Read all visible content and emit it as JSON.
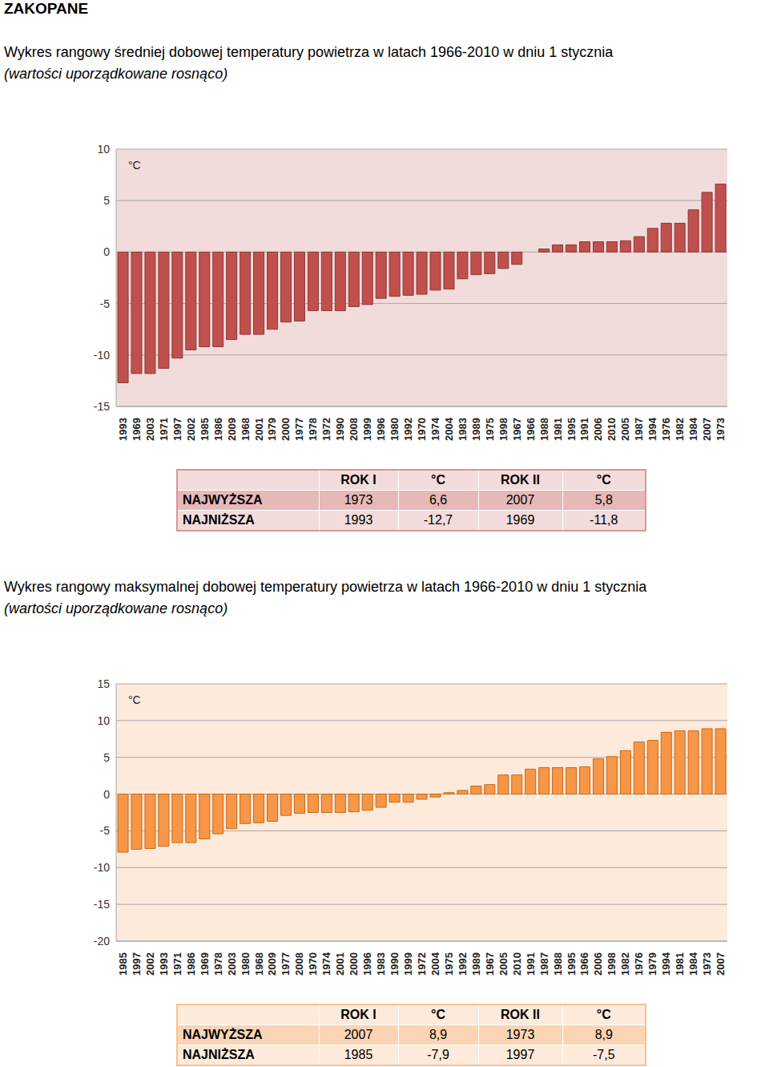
{
  "header": "ZAKOPANE",
  "chart_data": [
    {
      "type": "bar",
      "title": "Wykres rangowy średniej dobowej temperatury powietrza w latach 1966-2010 w dniu 1 stycznia",
      "subtitle": "(wartości uporządkowane rosnąco)",
      "y_label": "°C",
      "categories": [
        "1993",
        "1969",
        "2003",
        "1971",
        "1997",
        "2002",
        "1985",
        "1986",
        "2009",
        "1968",
        "2001",
        "1979",
        "2000",
        "1977",
        "1978",
        "1972",
        "1990",
        "2008",
        "1999",
        "1996",
        "1980",
        "1992",
        "1970",
        "1974",
        "2004",
        "1983",
        "1989",
        "1975",
        "1998",
        "1967",
        "1966",
        "1988",
        "1981",
        "1995",
        "1991",
        "2006",
        "2010",
        "2005",
        "1987",
        "1994",
        "1976",
        "1982",
        "1984",
        "2007",
        "1973"
      ],
      "values": [
        -12.7,
        -11.8,
        -11.8,
        -11.3,
        -10.3,
        -9.5,
        -9.2,
        -9.2,
        -8.5,
        -8.0,
        -8.0,
        -7.5,
        -6.8,
        -6.7,
        -5.7,
        -5.7,
        -5.7,
        -5.3,
        -5.1,
        -4.5,
        -4.3,
        -4.2,
        -4.1,
        -3.7,
        -3.6,
        -2.6,
        -2.2,
        -2.1,
        -1.6,
        -1.2,
        0.0,
        0.3,
        0.7,
        0.7,
        1.0,
        1.0,
        1.0,
        1.1,
        1.5,
        2.3,
        2.8,
        2.8,
        4.1,
        5.8,
        6.6
      ],
      "color": "#c0504d",
      "ylim": [
        -15,
        10
      ],
      "yticks": [
        -15,
        -10,
        -5,
        0,
        5,
        10
      ],
      "grid": true
    },
    {
      "type": "bar",
      "title": "Wykres rangowy maksymalnej dobowej temperatury powietrza w latach 1966-2010 w dniu 1 stycznia",
      "subtitle": "(wartości uporządkowane rosnąco)",
      "y_label": "°C",
      "categories": [
        "1985",
        "1997",
        "2002",
        "1993",
        "1971",
        "1986",
        "1969",
        "1978",
        "2003",
        "1980",
        "1968",
        "2009",
        "1977",
        "2008",
        "1970",
        "1974",
        "2001",
        "2000",
        "1996",
        "1983",
        "1990",
        "1999",
        "1972",
        "2004",
        "1975",
        "1992",
        "1989",
        "1967",
        "2005",
        "2010",
        "1991",
        "1987",
        "1988",
        "1995",
        "1966",
        "2006",
        "1998",
        "1982",
        "1976",
        "1979",
        "1994",
        "1981",
        "1984",
        "1973",
        "2007"
      ],
      "values": [
        -7.9,
        -7.5,
        -7.4,
        -7.1,
        -6.6,
        -6.6,
        -6.1,
        -5.4,
        -4.7,
        -4.0,
        -3.9,
        -3.7,
        -2.9,
        -2.6,
        -2.5,
        -2.5,
        -2.5,
        -2.4,
        -2.2,
        -1.8,
        -1.1,
        -1.1,
        -0.7,
        -0.4,
        0.2,
        0.5,
        1.1,
        1.3,
        2.6,
        2.6,
        3.4,
        3.6,
        3.6,
        3.6,
        3.7,
        4.8,
        5.1,
        5.9,
        7.1,
        7.3,
        8.4,
        8.6,
        8.6,
        8.9,
        8.9
      ],
      "color": "#f79646",
      "ylim": [
        -20,
        15
      ],
      "yticks": [
        -20,
        -15,
        -10,
        -5,
        0,
        5,
        10,
        15
      ],
      "grid": true
    }
  ],
  "tables": [
    {
      "header": [
        "ROK I",
        "°C",
        "ROK II",
        "°C"
      ],
      "rows": [
        [
          "NAJWYŻSZA",
          "1973",
          "6,6",
          "2007",
          "5,8"
        ],
        [
          "NAJNIŻSZA",
          "1993",
          "-12,7",
          "1969",
          "-11,8"
        ]
      ]
    },
    {
      "header": [
        "ROK I",
        "°C",
        "ROK II",
        "°C"
      ],
      "rows": [
        [
          "NAJWYŻSZA",
          "2007",
          "8,9",
          "1973",
          "8,9"
        ],
        [
          "NAJNIŻSZA",
          "1985",
          "-7,9",
          "1997",
          "-7,5"
        ]
      ]
    }
  ]
}
